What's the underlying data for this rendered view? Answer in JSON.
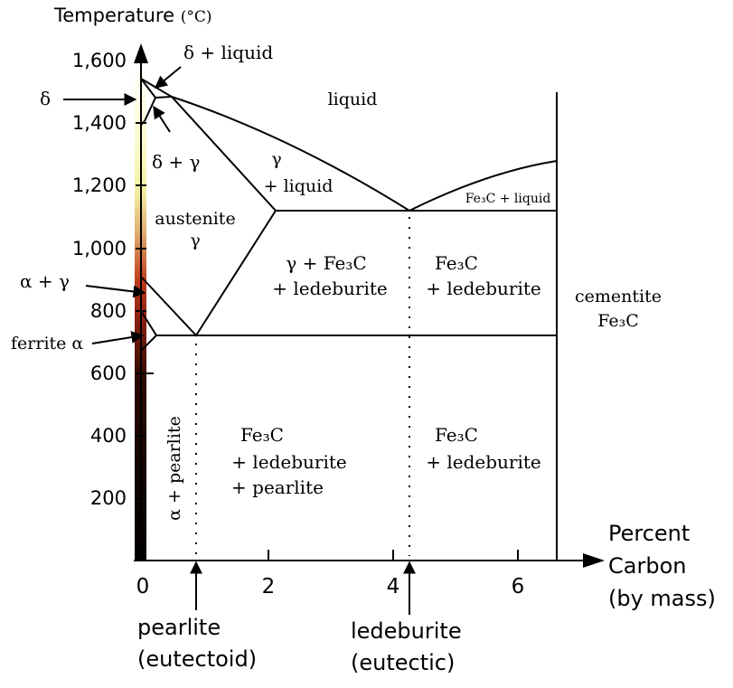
{
  "axes": {
    "y_label": "Temperature",
    "y_unit": "(°C)",
    "y_ticks": [
      "1,600",
      "1,400",
      "1,200",
      "1,000",
      "800",
      "600",
      "400",
      "200"
    ],
    "x_ticks": [
      "0",
      "2",
      "4",
      "6"
    ],
    "x_label_line1": "Percent",
    "x_label_line2": "Carbon",
    "x_label_line3": "(by mass)"
  },
  "regions": {
    "liquid": "liquid",
    "austenite_line1": "austenite",
    "austenite_line2": "γ",
    "gamma_liquid_line1": "γ",
    "gamma_liquid_line2": "+ liquid",
    "fe3c_liquid": "Fe₃C + liquid",
    "gamma_fe3c_line1": "γ + Fe₃C",
    "gamma_fe3c_line2": "+ ledeburite",
    "fe3c_led_upper_line1": "Fe₃C",
    "fe3c_led_upper_line2": "+ ledeburite",
    "cementite_line1": "cementite",
    "cementite_line2": "Fe₃C",
    "alpha_pearlite": "α + pearlite",
    "fe3c_led_pearl_line1": "Fe₃C",
    "fe3c_led_pearl_line2": "+ ledeburite",
    "fe3c_led_pearl_line3": "+ pearlite",
    "fe3c_led_lower_line1": "Fe₃C",
    "fe3c_led_lower_line2": "+ ledeburite"
  },
  "callouts": {
    "delta": "δ",
    "delta_liquid": "δ + liquid",
    "delta_gamma": "δ + γ",
    "alpha_gamma": "α + γ",
    "ferrite_alpha": "ferrite α",
    "pearlite_line1": "pearlite",
    "pearlite_line2": "(eutectoid)",
    "ledeburite_line1": "ledeburite",
    "ledeburite_line2": "(eutectic)"
  }
}
